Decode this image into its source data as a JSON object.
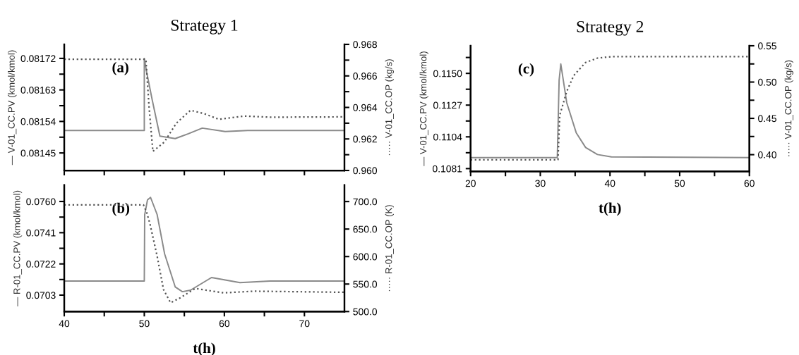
{
  "chart_data": [
    {
      "type": "line",
      "title": "Strategy 1",
      "ylabel": "— V-01_CC.PV (kmol/kmol)",
      "y2label": "····· V-01_CC.OP (kg/s)",
      "annotations": [
        "(a)"
      ],
      "xlim": [
        40,
        75
      ],
      "xticks": [
        40,
        {
          "value": 45,
          "label": null
        },
        50,
        {
          "value": 55,
          "label": null
        },
        60,
        {
          "value": 65,
          "label": null
        },
        70
      ],
      "ylim": [
        0.0814,
        0.08176
      ],
      "yticks": [
        0.08145,
        {
          "value": 0.081495,
          "label": null
        },
        0.08154,
        {
          "value": 0.081585,
          "label": null
        },
        0.08163,
        {
          "value": 0.081675,
          "label": null
        },
        0.08172
      ],
      "y2lim": [
        0.96,
        0.968
      ],
      "y2ticks": [
        {
          "value": 0.96,
          "label": "0.960"
        },
        {
          "value": 0.961,
          "label": null
        },
        0.962,
        {
          "value": 0.963,
          "label": null
        },
        0.964,
        {
          "value": 0.965,
          "label": null
        },
        0.966,
        {
          "value": 0.967,
          "label": null
        },
        0.968
      ],
      "tick_labels": "y",
      "grid": false,
      "legend": false,
      "series": [
        {
          "color": "#8a8a8a",
          "line_style": "solid",
          "x": [
            40,
            50,
            50,
            50.3,
            51.0,
            51.95,
            53.86,
            55.5,
            57.24,
            60.1,
            62.9,
            75
          ],
          "values": [
            0.081514,
            0.081514,
            0.08172,
            0.08168,
            0.0816,
            0.081498,
            0.081491,
            0.081505,
            0.081521,
            0.081511,
            0.081514,
            0.081514
          ]
        },
        {
          "color": "#555555",
          "line_style": "dotted",
          "axis": "y2",
          "x": [
            40,
            50.2,
            50.6,
            51.07,
            52.5,
            54.0,
            55.77,
            57.5,
            59.3,
            62.5,
            65.7,
            75
          ],
          "values": [
            0.96706,
            0.96706,
            0.964,
            0.96121,
            0.9618,
            0.963,
            0.96382,
            0.9636,
            0.96325,
            0.96345,
            0.96338,
            0.9634
          ]
        }
      ]
    },
    {
      "type": "line",
      "xlabel": "t(h)",
      "ylabel": "— R-01_CC.PV (kmol/kmol)",
      "y2label": "····· R-01_CC.OP (K)",
      "annotations": [
        "(b)"
      ],
      "xlim": [
        40,
        75
      ],
      "xticks": [
        40,
        {
          "value": 45,
          "label": null
        },
        50,
        {
          "value": 55,
          "label": null
        },
        60,
        {
          "value": 65,
          "label": null
        },
        70
      ],
      "ylim": [
        0.0693,
        0.077
      ],
      "yticks": [
        0.0703,
        {
          "value": 0.07125,
          "label": null
        },
        0.0722,
        {
          "value": 0.07315,
          "label": null
        },
        0.0741,
        {
          "value": 0.07505,
          "label": null
        },
        {
          "value": 0.076,
          "label": "0.0760"
        }
      ],
      "y2lim": [
        500,
        730
      ],
      "y2ticks": [
        {
          "value": 500,
          "label": "500.0"
        },
        {
          "value": 550,
          "label": "550.0"
        },
        {
          "value": 600,
          "label": "600.0"
        },
        {
          "value": 650,
          "label": "650.0"
        },
        {
          "value": 700,
          "label": "700.0"
        }
      ],
      "grid": false,
      "legend": false,
      "series": [
        {
          "color": "#8a8a8a",
          "line_style": "solid",
          "x": [
            40,
            50,
            50.05,
            50.4,
            50.78,
            51.6,
            52.54,
            53.86,
            54.75,
            55.77,
            58.4,
            61.95,
            65.7,
            75
          ],
          "values": [
            0.07116,
            0.07116,
            0.0752,
            0.0761,
            0.07625,
            0.07521,
            0.07281,
            0.0708,
            0.07051,
            0.0706,
            0.07137,
            0.07106,
            0.07116,
            0.07116
          ]
        },
        {
          "color": "#555555",
          "line_style": "dotted",
          "axis": "y2",
          "x": [
            40,
            49.9,
            50.3,
            50.7,
            51.6,
            52.4,
            53.28,
            54.5,
            56.36,
            59.9,
            63.7,
            75
          ],
          "values": [
            694,
            694,
            680,
            660,
            601,
            540,
            516,
            525,
            542,
            534,
            537,
            535
          ]
        }
      ]
    },
    {
      "type": "line",
      "title": "Strategy 2",
      "xlabel": "t(h)",
      "ylabel": "— V-01_CC.PV (kmol/kmol)",
      "y2label": "····· V-01_CC.OP (kg/s)",
      "annotations": [
        "(c)"
      ],
      "xlim": [
        20,
        60
      ],
      "xticks": [
        20,
        {
          "value": 25,
          "label": null
        },
        30,
        {
          "value": 35,
          "label": null
        },
        40,
        {
          "value": 45,
          "label": null
        },
        50,
        {
          "value": 55,
          "label": null
        },
        60
      ],
      "ylim": [
        0.1079,
        0.117
      ],
      "yticks": [
        0.1081,
        {
          "value": 0.10925,
          "label": null
        },
        0.1104,
        {
          "value": 0.11155,
          "label": null
        },
        0.1127,
        {
          "value": 0.11385,
          "label": null
        },
        {
          "value": 0.115,
          "label": "0.1150"
        },
        {
          "value": 0.11615,
          "label": null
        }
      ],
      "y2lim": [
        0.377,
        0.55
      ],
      "y2ticks": [
        {
          "value": 0.4,
          "label": "0.40"
        },
        {
          "value": 0.425,
          "label": null
        },
        0.45,
        {
          "value": 0.475,
          "label": null
        },
        {
          "value": 0.5,
          "label": "0.50"
        },
        {
          "value": 0.525,
          "label": null
        },
        0.55
      ],
      "grid": false,
      "legend": false,
      "series": [
        {
          "color": "#8a8a8a",
          "line_style": "solid",
          "x": [
            20,
            32.44,
            32.7,
            32.94,
            33.3,
            33.79,
            35.15,
            36.5,
            38.2,
            40.2,
            60
          ],
          "values": [
            0.1089,
            0.1089,
            0.1145,
            0.11568,
            0.1145,
            0.11288,
            0.1107,
            0.10963,
            0.10912,
            0.10895,
            0.1089
          ]
        },
        {
          "color": "#555555",
          "line_style": "dotted",
          "axis": "y2",
          "x": [
            20,
            32.54,
            32.78,
            33.79,
            34.8,
            36.5,
            38.2,
            40.2,
            60
          ],
          "values": [
            0.393,
            0.393,
            0.454,
            0.487,
            0.509,
            0.527,
            0.533,
            0.535,
            0.535
          ]
        }
      ]
    }
  ]
}
